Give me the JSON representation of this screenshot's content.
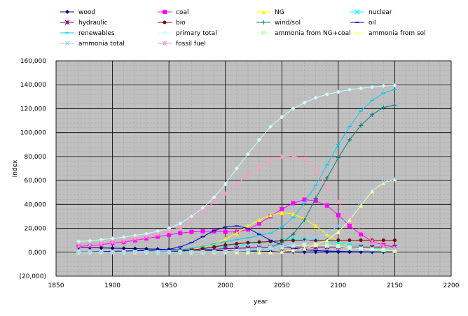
{
  "chart_data": {
    "type": "line",
    "title": "",
    "xlabel": "year",
    "ylabel": "index",
    "xlim": [
      1850,
      2200
    ],
    "ylim": [
      -20000,
      160000
    ],
    "x_ticks": [
      1850,
      1900,
      1950,
      2000,
      2050,
      2100,
      2150,
      2200
    ],
    "y_ticks": [
      -20000,
      0,
      20000,
      40000,
      60000,
      80000,
      100000,
      120000,
      140000,
      160000
    ],
    "y_tick_labels": [
      "(20,000)",
      "0,000",
      "20,000",
      "40,000",
      "60,000",
      "80,000",
      "100,000",
      "120,000",
      "140,000",
      "160,000"
    ],
    "negative_tick_color": "#cc0000",
    "grid": true,
    "plot_background": "#c0c0c0",
    "legend_position": "top",
    "x": [
      1870,
      1880,
      1890,
      1900,
      1910,
      1920,
      1930,
      1940,
      1950,
      1960,
      1970,
      1980,
      1990,
      2000,
      2010,
      2020,
      2030,
      2040,
      2050,
      2060,
      2070,
      2080,
      2090,
      2100,
      2110,
      2120,
      2130,
      2140,
      2150
    ],
    "series": [
      {
        "name": "wood",
        "color": "#000080",
        "marker": "diamond",
        "values": [
          4000,
          3800,
          3600,
          3400,
          3200,
          3000,
          2800,
          2600,
          2300,
          2000,
          1800,
          1600,
          1400,
          1200,
          1000,
          900,
          800,
          700,
          500,
          300,
          200,
          200,
          200,
          200,
          200,
          200,
          200,
          200,
          200
        ]
      },
      {
        "name": "coal",
        "color": "#ff00ff",
        "marker": "square",
        "values": [
          5000,
          5500,
          6500,
          7500,
          8500,
          10000,
          11500,
          13000,
          14500,
          16000,
          17000,
          17500,
          17500,
          17000,
          17000,
          19000,
          24000,
          30000,
          36000,
          41000,
          44000,
          43000,
          39000,
          31000,
          22000,
          15000,
          9000,
          6000,
          4500
        ]
      },
      {
        "name": "NG",
        "color": "#ffff00",
        "marker": "triangle",
        "values": [
          0,
          0,
          0,
          0,
          0,
          0,
          0,
          200,
          500,
          1000,
          2000,
          4000,
          7000,
          11000,
          16000,
          22000,
          27000,
          31000,
          33000,
          32000,
          28000,
          22000,
          15000,
          9000,
          5000,
          3000,
          2000,
          1500,
          1000
        ]
      },
      {
        "name": "nuclear",
        "color": "#00ffff",
        "marker": "x",
        "values": [
          0,
          0,
          0,
          0,
          0,
          0,
          0,
          0,
          0,
          200,
          1000,
          2500,
          4000,
          5000,
          6000,
          7000,
          8000,
          9000,
          10000,
          11000,
          11000,
          10500,
          9500,
          8000,
          6500,
          5000,
          3500,
          2500,
          2000
        ]
      },
      {
        "name": "hydraulic",
        "color": "#800080",
        "marker": "star",
        "values": [
          0,
          0,
          0,
          0,
          0,
          100,
          200,
          400,
          600,
          1000,
          1500,
          2000,
          2500,
          3000,
          3300,
          3500,
          3700,
          4000,
          4200,
          4300,
          4300,
          4300,
          4300,
          4300,
          4300,
          4300,
          4300,
          4300,
          4300
        ]
      },
      {
        "name": "bio",
        "color": "#800000",
        "marker": "circle",
        "values": [
          0,
          0,
          0,
          0,
          0,
          0,
          0,
          0,
          300,
          1000,
          2000,
          3000,
          4500,
          6000,
          7000,
          8000,
          8500,
          9000,
          9500,
          9800,
          10000,
          10000,
          10000,
          10000,
          10000,
          10000,
          10000,
          10000,
          10000
        ]
      },
      {
        "name": "wind/sol",
        "color": "#008080",
        "marker": "plus",
        "values": [
          0,
          0,
          0,
          0,
          0,
          0,
          0,
          0,
          0,
          0,
          0,
          0,
          0,
          0,
          300,
          800,
          2000,
          4000,
          8000,
          15000,
          27000,
          45000,
          62000,
          79000,
          94000,
          106000,
          115000,
          121000,
          123000
        ]
      },
      {
        "name": "oil",
        "color": "#0000cc",
        "marker": "dash",
        "values": [
          300,
          400,
          600,
          800,
          1000,
          1200,
          1500,
          1800,
          2500,
          4500,
          8000,
          13000,
          18000,
          21000,
          22000,
          20000,
          15000,
          10000,
          6000,
          3500,
          2000,
          1500,
          1000,
          800,
          500,
          400,
          300,
          200,
          200
        ]
      },
      {
        "name": "renewables",
        "color": "#00ccff",
        "marker": "dash",
        "values": [
          0,
          0,
          0,
          0,
          0,
          100,
          200,
          400,
          900,
          2000,
          3500,
          5000,
          7000,
          9000,
          10500,
          12000,
          14000,
          16000,
          21000,
          29000,
          41000,
          56000,
          73000,
          90000,
          105000,
          118000,
          127000,
          133000,
          136000
        ]
      },
      {
        "name": "primary total",
        "color": "#ccffff",
        "marker": "diamond",
        "values": [
          9000,
          9500,
          10500,
          11500,
          12500,
          14000,
          15500,
          17500,
          20000,
          24000,
          30000,
          37000,
          46000,
          57000,
          70000,
          82000,
          94000,
          105000,
          113000,
          120000,
          125000,
          129000,
          132000,
          134000,
          136000,
          137000,
          138000,
          139000,
          139500
        ]
      },
      {
        "name": "ammonia from NG+coal",
        "color": "#ccffcc",
        "marker": "square",
        "values": [
          0,
          0,
          0,
          0,
          0,
          0,
          0,
          0,
          0,
          0,
          0,
          0,
          200,
          500,
          1000,
          1500,
          2500,
          3500,
          4500,
          5500,
          6000,
          6000,
          5500,
          5000,
          4000,
          3000,
          2500,
          2000,
          1500
        ]
      },
      {
        "name": "ammonia from sol",
        "color": "#ffff99",
        "marker": "triangle",
        "values": [
          0,
          0,
          0,
          0,
          0,
          0,
          0,
          0,
          0,
          0,
          0,
          0,
          0,
          0,
          0,
          0,
          0,
          0,
          500,
          1500,
          3000,
          6000,
          10000,
          17000,
          27000,
          39000,
          51000,
          58000,
          61000
        ]
      },
      {
        "name": "ammonia total",
        "color": "#99ccff",
        "marker": "x",
        "values": [
          0,
          0,
          0,
          0,
          0,
          0,
          0,
          0,
          0,
          0,
          0,
          0,
          200,
          500,
          1000,
          1500,
          2500,
          3500,
          5000,
          7000,
          9000,
          12000,
          16000,
          22000,
          31000,
          42000,
          53000,
          59000,
          62000
        ]
      },
      {
        "name": "fossil fuel",
        "color": "#ff99cc",
        "marker": "star",
        "values": [
          5500,
          6000,
          7000,
          8500,
          9500,
          11500,
          13000,
          15000,
          17500,
          21000,
          27000,
          34000,
          42000,
          49000,
          57000,
          64000,
          71000,
          77000,
          80000,
          80500,
          78000,
          68000,
          55000,
          42000,
          30000,
          18000,
          9000,
          5000,
          3500
        ]
      }
    ]
  }
}
